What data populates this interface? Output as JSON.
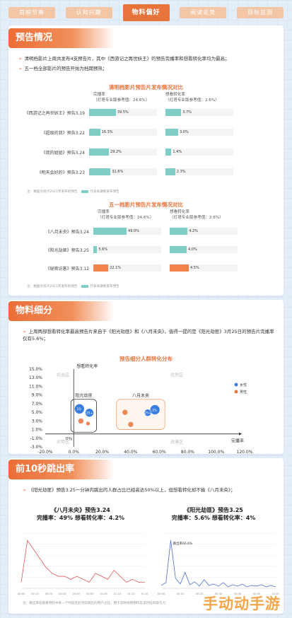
{
  "tabs": [
    {
      "label": "首映节奏"
    },
    {
      "label": "认知兴趣"
    },
    {
      "label": "物料偏好"
    },
    {
      "label": "阅读走势"
    },
    {
      "label": "目标监测"
    }
  ],
  "section1": {
    "title": "预告情况",
    "bullet1": "清明档影片上周共发布4支预告片，其中《西游记之再世妖王》的预告完播率和想看转化率均为最高；",
    "bullet2": "五一档全部影片的预告开始为档期预热；",
    "chart_a": {
      "title": "清明档影片预告片发布情况对比",
      "col1": "完播率",
      "col1_sub": "（灯塔专业版参考值：24.6%）",
      "col2": "想看转化率",
      "col2_sub": "（灯塔专业版参考值：2.6%）",
      "note": "注：数据仅统计2021年发布的预告",
      "legend": "代表本期新发布预告"
    },
    "chart_b": {
      "title": "五一档影片预告片发布情况对比",
      "col1": "完播率",
      "col1_sub": "（灯塔专业版参考值：24.6%）",
      "col2": "想看转化率",
      "col2_sub": "（灯塔专业版参考值：2.6%）",
      "note": "注：数据仅统计2021年发布的预告",
      "legend": "代表本期新发布预告"
    }
  },
  "section2": {
    "title": "物料细分",
    "bullet1": "上周两部想看转化率最高预告片来自于《阳光劫匪》和《八月未央》，值得一提的是《阳光劫匪》3月25日的预告片完播率仅有5.6%；",
    "chart_title": "预告细分人群转化分布",
    "quadrants": {
      "tl": "机会区",
      "tr": "优势区",
      "bl": "劣势区",
      "br": "改善区"
    },
    "cluster_left": "阳光劫匪",
    "cluster_right": "八月未央",
    "legend": [
      {
        "label": "女性",
        "color": "#3a7de0"
      },
      {
        "label": "男性",
        "color": "#e8743b"
      }
    ],
    "origin_label": "0%"
  },
  "section3": {
    "title": "前10秒跳出率",
    "bullet1": "《阳光劫匪》预告3.25一分钟内跳出的人群占比已经高达50%以上，但想看转化却不输《八月未央》；",
    "left_title": "《八月未央》预告3.24",
    "left_stats": "完播率：49%  想看转化率：4.2%",
    "right_title": "《阳光劫匪》预告3.25",
    "right_stats": "完播率：5.6%  想看转化率：4%",
    "right_peak_label": "跳出率66.6%",
    "note": "注：跳出率指观看物料中某一个时段在此时段跳出的用户占比，用于反映视频物料在该时段的吸引力"
  },
  "watermark": "手动动手游",
  "colors": {
    "accent": "#e8743b",
    "teal": "#7fcdc7",
    "blue": "#3a7de0"
  },
  "chart_data": [
    {
      "type": "bar",
      "title": "清明档影片预告片发布情况对比",
      "categories": [
        "《西游记之再世妖王》预告3.19",
        "《超级的我》预告3.22",
        "《我的姐姐》预告3.24",
        "《明天会好的》预告3.23"
      ],
      "series": [
        {
          "name": "完播率",
          "values": [
            39.5,
            16.3,
            29.2,
            31.6
          ],
          "labels": [
            "39.5%",
            "16.3%",
            "29.2%",
            "31.6%"
          ],
          "color": "#7fcdc7"
        },
        {
          "name": "想看转化率",
          "values": [
            3.7,
            3.0,
            1.4,
            2.3
          ],
          "labels": [
            "3.7%",
            "3.0%",
            "1.4%",
            "2.3%"
          ],
          "color": "#7fcdc7"
        }
      ]
    },
    {
      "type": "bar",
      "title": "五一档影片预告片发布情况对比",
      "categories": [
        "《八月未央》预告3.24",
        "《阳光劫匪》预告3.25",
        "《秘密访客》预告3.12"
      ],
      "series": [
        {
          "name": "完播率",
          "values": [
            49.0,
            5.6,
            22.1
          ],
          "labels": [
            "49.0%",
            "5.6%",
            "22.1%"
          ],
          "colors": [
            "#7fcdc7",
            "#7fcdc7",
            "#f0824a"
          ]
        },
        {
          "name": "想看转化率",
          "values": [
            4.2,
            4.0,
            4.5
          ],
          "labels": [
            "4.2%",
            "4.0%",
            "4.5%"
          ],
          "colors": [
            "#7fcdc7",
            "#7fcdc7",
            "#f0824a"
          ]
        }
      ]
    },
    {
      "type": "scatter",
      "title": "预告细分人群转化分布",
      "xlabel": "完播率",
      "ylabel": "想看转化率",
      "xlim": [
        -20,
        120
      ],
      "ylim": [
        -3,
        15
      ],
      "x_ticks": [
        "-20.0%",
        "0.0%",
        "20.0%",
        "40.0%",
        "60.0%",
        "80.0%",
        "100.0%",
        "120.0%"
      ],
      "y_ticks": [
        "15.0%",
        "13.0%",
        "11.0%",
        "9.0%",
        "7.0%",
        "5.0%",
        "3.0%",
        "1.0%",
        "-1.0%",
        "-3.0%"
      ],
      "points": [
        {
          "group": "阳光劫匪",
          "series": "女性",
          "x": 4,
          "y": 5.8,
          "label": "25-",
          "size": 7
        },
        {
          "group": "阳光劫匪",
          "series": "女性",
          "x": 11,
          "y": 4.9,
          "label": "25+",
          "size": 6
        },
        {
          "group": "阳光劫匪",
          "series": "男性",
          "x": 5,
          "y": 3.0,
          "label": "25-",
          "size": 4
        },
        {
          "group": "阳光劫匪",
          "series": "男性",
          "x": 10,
          "y": 2.4,
          "label": "25+",
          "size": 3
        },
        {
          "group": "八月未央",
          "series": "女性",
          "x": 57,
          "y": 5.6,
          "label": "25-",
          "size": 7
        },
        {
          "group": "八月未央",
          "series": "女性",
          "x": 52,
          "y": 4.9,
          "label": "25+",
          "size": 5
        },
        {
          "group": "八月未央",
          "series": "男性",
          "x": 36,
          "y": 5.0,
          "label": "25-",
          "size": 4
        },
        {
          "group": "八月未央",
          "series": "男性",
          "x": 40,
          "y": 2.2,
          "label": "25+",
          "size": 4
        }
      ]
    },
    {
      "type": "line",
      "title": "《八月未央》预告3.24",
      "x_ticks": [
        "00:00",
        "00:10",
        "00:20",
        "00:30",
        "00:40",
        "00:50",
        "01:00",
        "01:10",
        "01:20",
        "01:30"
      ],
      "values": [
        2,
        16,
        13,
        10,
        7,
        5,
        4,
        4,
        3,
        4,
        3,
        2,
        5,
        4,
        3,
        6,
        4,
        2,
        3,
        2,
        2
      ]
    },
    {
      "type": "line",
      "title": "《阳光劫匪》预告3.25",
      "x_ticks": [
        "00:00",
        "00:10",
        "00:20",
        "00:30",
        "00:40",
        "00:50",
        "01:00"
      ],
      "values": [
        4,
        8,
        66.6,
        14,
        6,
        22,
        5,
        9,
        3,
        12,
        4,
        6,
        3,
        8,
        2,
        5,
        3,
        6,
        2,
        4,
        3,
        5,
        2,
        4,
        2
      ]
    }
  ]
}
